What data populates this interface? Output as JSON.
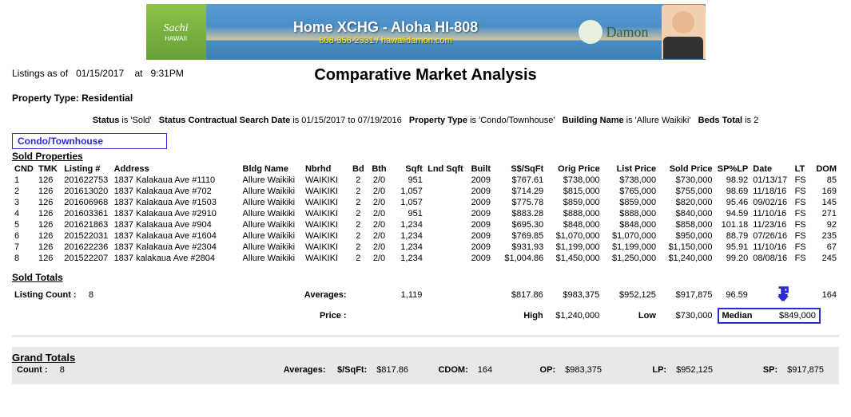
{
  "banner": {
    "logo_top": "Sachi",
    "logo_bottom": "HAWAII",
    "title": "Home XCHG - Aloha HI-808",
    "phone": "808-358-2331 / hawaiidamon.com",
    "brand": "Damon",
    "colors": {
      "bg_top": "#5b9bd5",
      "logo_bg": "#8bc34a",
      "accent": "#2b2bd6"
    }
  },
  "header": {
    "listings_label": "Listings as of",
    "date": "01/15/2017",
    "at_label": "at",
    "time": "9:31PM",
    "title": "Comparative Market Analysis",
    "prop_type_label": "Property Type:",
    "prop_type": "Residential"
  },
  "filters": {
    "status_lbl": "Status",
    "status_val": "is 'Sold'",
    "scsd_lbl": "Status Contractual Search Date",
    "scsd_val": "is 01/15/2017 to 07/19/2016",
    "ptype_lbl": "Property Type",
    "ptype_val": "is 'Condo/Townhouse'",
    "bname_lbl": "Building Name",
    "bname_val": "is 'Allure Waikiki'",
    "beds_lbl": "Beds Total",
    "beds_val": "is 2"
  },
  "type_box": "Condo/Townhouse",
  "sold_header": "Sold Properties",
  "cols": {
    "cnd": "CND",
    "tmk": "TMK",
    "listing": "Listing #",
    "address": "Address",
    "bldg": "Bldg Name",
    "nbrhd": "Nbrhd",
    "bd": "Bd",
    "bth": "Bth",
    "sqft": "Sqft",
    "lnd": "Lnd Sqft",
    "built": "Built",
    "spsqft": "S$/SqFt",
    "orig": "Orig Price",
    "list": "List Price",
    "sold": "Sold Price",
    "splp": "SP%LP",
    "date": "Date",
    "lt": "LT",
    "dom": "DOM"
  },
  "rows": [
    {
      "n": "1",
      "tmk": "126",
      "ln": "201622753",
      "addr": "1837 Kalakaua Ave #1110",
      "bldg": "Allure Waikiki",
      "nb": "WAIKIKI",
      "bd": "2",
      "bth": "2/0",
      "sqft": "951",
      "lnd": "",
      "built": "2009",
      "ss": "$767.61",
      "op": "$738,000",
      "lp": "$738,000",
      "sp": "$730,000",
      "splp": "98.92",
      "dt": "01/13/17",
      "lt": "FS",
      "dom": "85"
    },
    {
      "n": "2",
      "tmk": "126",
      "ln": "201613020",
      "addr": "1837 Kalakaua Ave #702",
      "bldg": "Allure Waikiki",
      "nb": "WAIKIKI",
      "bd": "2",
      "bth": "2/0",
      "sqft": "1,057",
      "lnd": "",
      "built": "2009",
      "ss": "$714.29",
      "op": "$815,000",
      "lp": "$765,000",
      "sp": "$755,000",
      "splp": "98.69",
      "dt": "11/18/16",
      "lt": "FS",
      "dom": "169"
    },
    {
      "n": "3",
      "tmk": "126",
      "ln": "201606968",
      "addr": "1837 Kalakaua Ave #1503",
      "bldg": "Allure Waikiki",
      "nb": "WAIKIKI",
      "bd": "2",
      "bth": "2/0",
      "sqft": "1,057",
      "lnd": "",
      "built": "2009",
      "ss": "$775.78",
      "op": "$859,000",
      "lp": "$859,000",
      "sp": "$820,000",
      "splp": "95.46",
      "dt": "09/02/16",
      "lt": "FS",
      "dom": "145"
    },
    {
      "n": "4",
      "tmk": "126",
      "ln": "201603361",
      "addr": "1837 Kalakaua Ave #2910",
      "bldg": "Allure Waikiki",
      "nb": "WAIKIKI",
      "bd": "2",
      "bth": "2/0",
      "sqft": "951",
      "lnd": "",
      "built": "2009",
      "ss": "$883.28",
      "op": "$888,000",
      "lp": "$888,000",
      "sp": "$840,000",
      "splp": "94.59",
      "dt": "11/10/16",
      "lt": "FS",
      "dom": "271"
    },
    {
      "n": "5",
      "tmk": "126",
      "ln": "201621863",
      "addr": "1837 Kalakaua Ave #904",
      "bldg": "Allure Waikiki",
      "nb": "WAIKIKI",
      "bd": "2",
      "bth": "2/0",
      "sqft": "1,234",
      "lnd": "",
      "built": "2009",
      "ss": "$695.30",
      "op": "$848,000",
      "lp": "$848,000",
      "sp": "$858,000",
      "splp": "101.18",
      "dt": "11/23/16",
      "lt": "FS",
      "dom": "92"
    },
    {
      "n": "6",
      "tmk": "126",
      "ln": "201522031",
      "addr": "1837 Kalakaua Ave #1604",
      "bldg": "Allure Waikiki",
      "nb": "WAIKIKI",
      "bd": "2",
      "bth": "2/0",
      "sqft": "1,234",
      "lnd": "",
      "built": "2009",
      "ss": "$769.85",
      "op": "$1,070,000",
      "lp": "$1,070,000",
      "sp": "$950,000",
      "splp": "88.79",
      "dt": "07/26/16",
      "lt": "FS",
      "dom": "235"
    },
    {
      "n": "7",
      "tmk": "126",
      "ln": "201622236",
      "addr": "1837 Kalakaua Ave #2304",
      "bldg": "Allure Waikiki",
      "nb": "WAIKIKI",
      "bd": "2",
      "bth": "2/0",
      "sqft": "1,234",
      "lnd": "",
      "built": "2009",
      "ss": "$931.93",
      "op": "$1,199,000",
      "lp": "$1,199,000",
      "sp": "$1,150,000",
      "splp": "95.91",
      "dt": "11/10/16",
      "lt": "FS",
      "dom": "67"
    },
    {
      "n": "8",
      "tmk": "126",
      "ln": "201522207",
      "addr": "1837 kalakaua Ave #2804",
      "bldg": "Allure Waikiki",
      "nb": "WAIKIKI",
      "bd": "2",
      "bth": "2/0",
      "sqft": "1,234",
      "lnd": "",
      "built": "2009",
      "ss": "$1,004.86",
      "op": "$1,450,000",
      "lp": "$1,250,000",
      "sp": "$1,240,000",
      "splp": "99.20",
      "dt": "08/08/16",
      "lt": "FS",
      "dom": "245"
    }
  ],
  "sold_totals": {
    "header": "Sold Totals",
    "lc_label": "Listing Count :",
    "lc": "8",
    "avg_label": "Averages:",
    "sqft": "1,119",
    "ss": "$817.86",
    "op": "$983,375",
    "lp": "$952,125",
    "sp": "$917,875",
    "splp": "96.59",
    "dom": "164",
    "price_label": "Price :",
    "high_label": "High",
    "high_val": "$1,240,000",
    "low_label": "Low",
    "low_val": "$730,000",
    "median_label": "Median",
    "median_val": "$849,000"
  },
  "grand": {
    "header": "Grand Totals",
    "count_label": "Count :",
    "count": "8",
    "avg_label": "Averages:",
    "ss_label": "$/SqFt:",
    "ss": "$817.86",
    "cdom_label": "CDOM:",
    "cdom": "164",
    "op_label": "OP:",
    "op": "$983,375",
    "lp_label": "LP:",
    "lp": "$952,125",
    "sp_label": "SP:",
    "sp": "$917,875"
  }
}
